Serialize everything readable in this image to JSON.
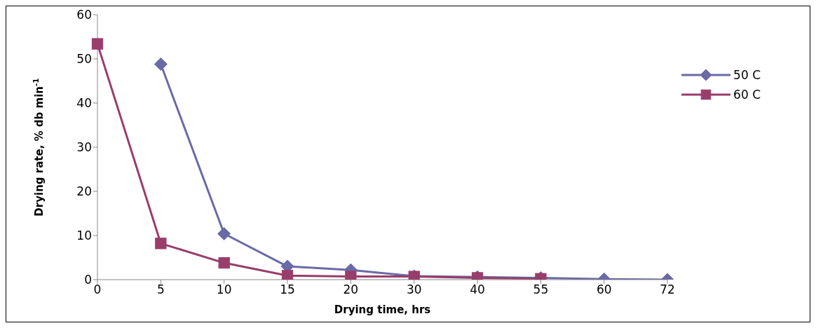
{
  "chart_data": {
    "type": "line",
    "xlabel": "Drying time, hrs",
    "ylabel": "Drying rate, % db min$^{-1}$",
    "categories": [
      "0",
      "5",
      "10",
      "15",
      "20",
      "30",
      "40",
      "55",
      "60",
      "72"
    ],
    "series": [
      {
        "name": "50 C",
        "color": "#6a6aa6",
        "marker": "diamond",
        "values": [
          null,
          48.8,
          10.4,
          3.0,
          2.2,
          0.8,
          0.6,
          0.4,
          0.1,
          0.0
        ]
      },
      {
        "name": "60 C",
        "color": "#993d6b",
        "marker": "square",
        "values": [
          53.4,
          8.2,
          3.8,
          0.9,
          0.7,
          0.7,
          0.4,
          0.2,
          null,
          null
        ]
      }
    ],
    "ylim": [
      0,
      60
    ],
    "yticks": [
      0,
      10,
      20,
      30,
      40,
      50,
      60
    ],
    "grid": false,
    "legend": "top right",
    "line_style": "solid"
  }
}
